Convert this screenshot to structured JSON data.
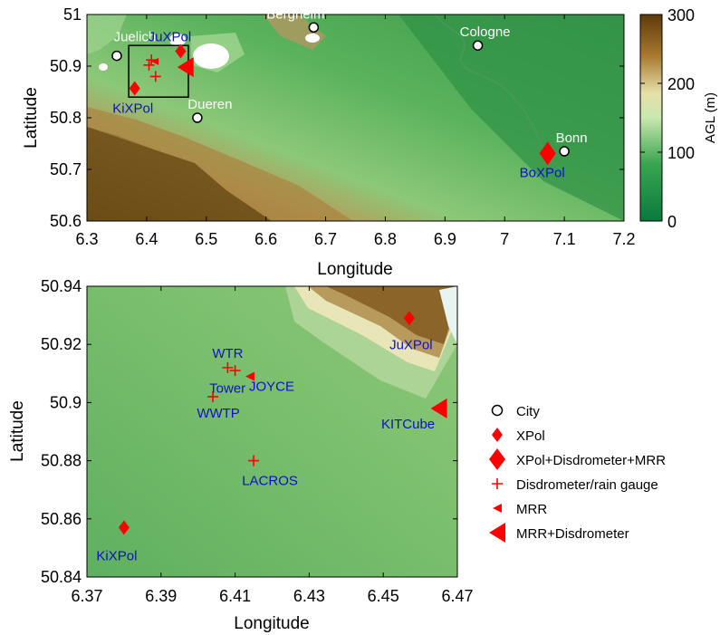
{
  "chart_data": [
    {
      "type": "scatter",
      "title": "",
      "xlabel": "Longitude",
      "ylabel": "Latitude",
      "xlim": [
        6.3,
        7.2
      ],
      "ylim": [
        50.6,
        51.0
      ],
      "xticks": [
        "6.3",
        "6.4",
        "6.5",
        "6.6",
        "6.7",
        "6.8",
        "6.9",
        "7",
        "7.1",
        "7.2"
      ],
      "yticks": [
        "50.6",
        "50.7",
        "50.8",
        "50.9",
        "51"
      ],
      "background": "terrain elevation (AGL) map, shaded green (low) to brown (high), with white lakes",
      "colorbar": {
        "label": "AGL (m)",
        "range": [
          0,
          300
        ],
        "ticks": [
          "0",
          "100",
          "200",
          "300"
        ],
        "colormap": "green-white-brown"
      },
      "inset_box": {
        "lon": [
          6.37,
          6.47
        ],
        "lat": [
          50.84,
          50.94
        ]
      },
      "cities": [
        {
          "name": "Juelich",
          "lon": 6.35,
          "lat": 50.92
        },
        {
          "name": "Bergheim",
          "lon": 6.68,
          "lat": 50.975
        },
        {
          "name": "Cologne",
          "lon": 6.955,
          "lat": 50.94
        },
        {
          "name": "Dueren",
          "lon": 6.485,
          "lat": 50.8
        },
        {
          "name": "Bonn",
          "lon": 7.1,
          "lat": 50.735
        }
      ],
      "xpol": [
        {
          "name": "JuXPol",
          "lon": 6.457,
          "lat": 50.929
        },
        {
          "name": "KiXPol",
          "lon": 6.38,
          "lat": 50.857
        }
      ],
      "xpol_disdrometer_mrr": [
        {
          "name": "BoXPol",
          "lon": 7.072,
          "lat": 50.731
        }
      ],
      "disdrometer_rain_gauge": [
        {
          "lon": 6.408,
          "lat": 50.912
        },
        {
          "lon": 6.404,
          "lat": 50.902
        },
        {
          "lon": 6.415,
          "lat": 50.88
        }
      ],
      "mrr": [
        {
          "lon": 6.414,
          "lat": 50.909
        }
      ],
      "mrr_disdrometer": [
        {
          "lon": 6.465,
          "lat": 50.898
        }
      ]
    },
    {
      "type": "scatter",
      "title": "",
      "xlabel": "Longitude",
      "ylabel": "Latitude",
      "xlim": [
        6.37,
        6.47
      ],
      "ylim": [
        50.84,
        50.94
      ],
      "xticks": [
        "6.37",
        "6.39",
        "6.41",
        "6.43",
        "6.45",
        "6.47"
      ],
      "yticks": [
        "50.84",
        "50.86",
        "50.88",
        "50.9",
        "50.92",
        "50.94"
      ],
      "background": "terrain elevation (AGL) map, shaded green (low) to brown (high)",
      "xpol": [
        {
          "name": "JuXPol",
          "lon": 6.457,
          "lat": 50.929
        },
        {
          "name": "KiXPol",
          "lon": 6.38,
          "lat": 50.857
        }
      ],
      "disdrometer_rain_gauge": [
        {
          "name": "WTR",
          "lon": 6.408,
          "lat": 50.912
        },
        {
          "name": "",
          "lon": 6.41,
          "lat": 50.911
        },
        {
          "name": "WWTP",
          "lon": 6.404,
          "lat": 50.902
        },
        {
          "name": "LACROS",
          "lon": 6.415,
          "lat": 50.88
        }
      ],
      "mrr": [
        {
          "name": "JOYCE",
          "lon": 6.414,
          "lat": 50.909
        }
      ],
      "mrr_disdrometer": [
        {
          "name": "KITCube",
          "lon": 6.465,
          "lat": 50.898
        }
      ],
      "extra_labels": [
        {
          "text": "Tower",
          "lon": 6.405,
          "lat": 50.905
        }
      ],
      "legend": {
        "placement": "right",
        "entries": [
          "City",
          "XPol",
          "XPol+Disdrometer+MRR",
          "Disdrometer/rain gauge",
          "MRR",
          "MRR+Disdrometer"
        ]
      }
    }
  ],
  "colors": {
    "marker": "#ff0000",
    "station_label": "#1010cc",
    "city_label": "#ffffff"
  }
}
